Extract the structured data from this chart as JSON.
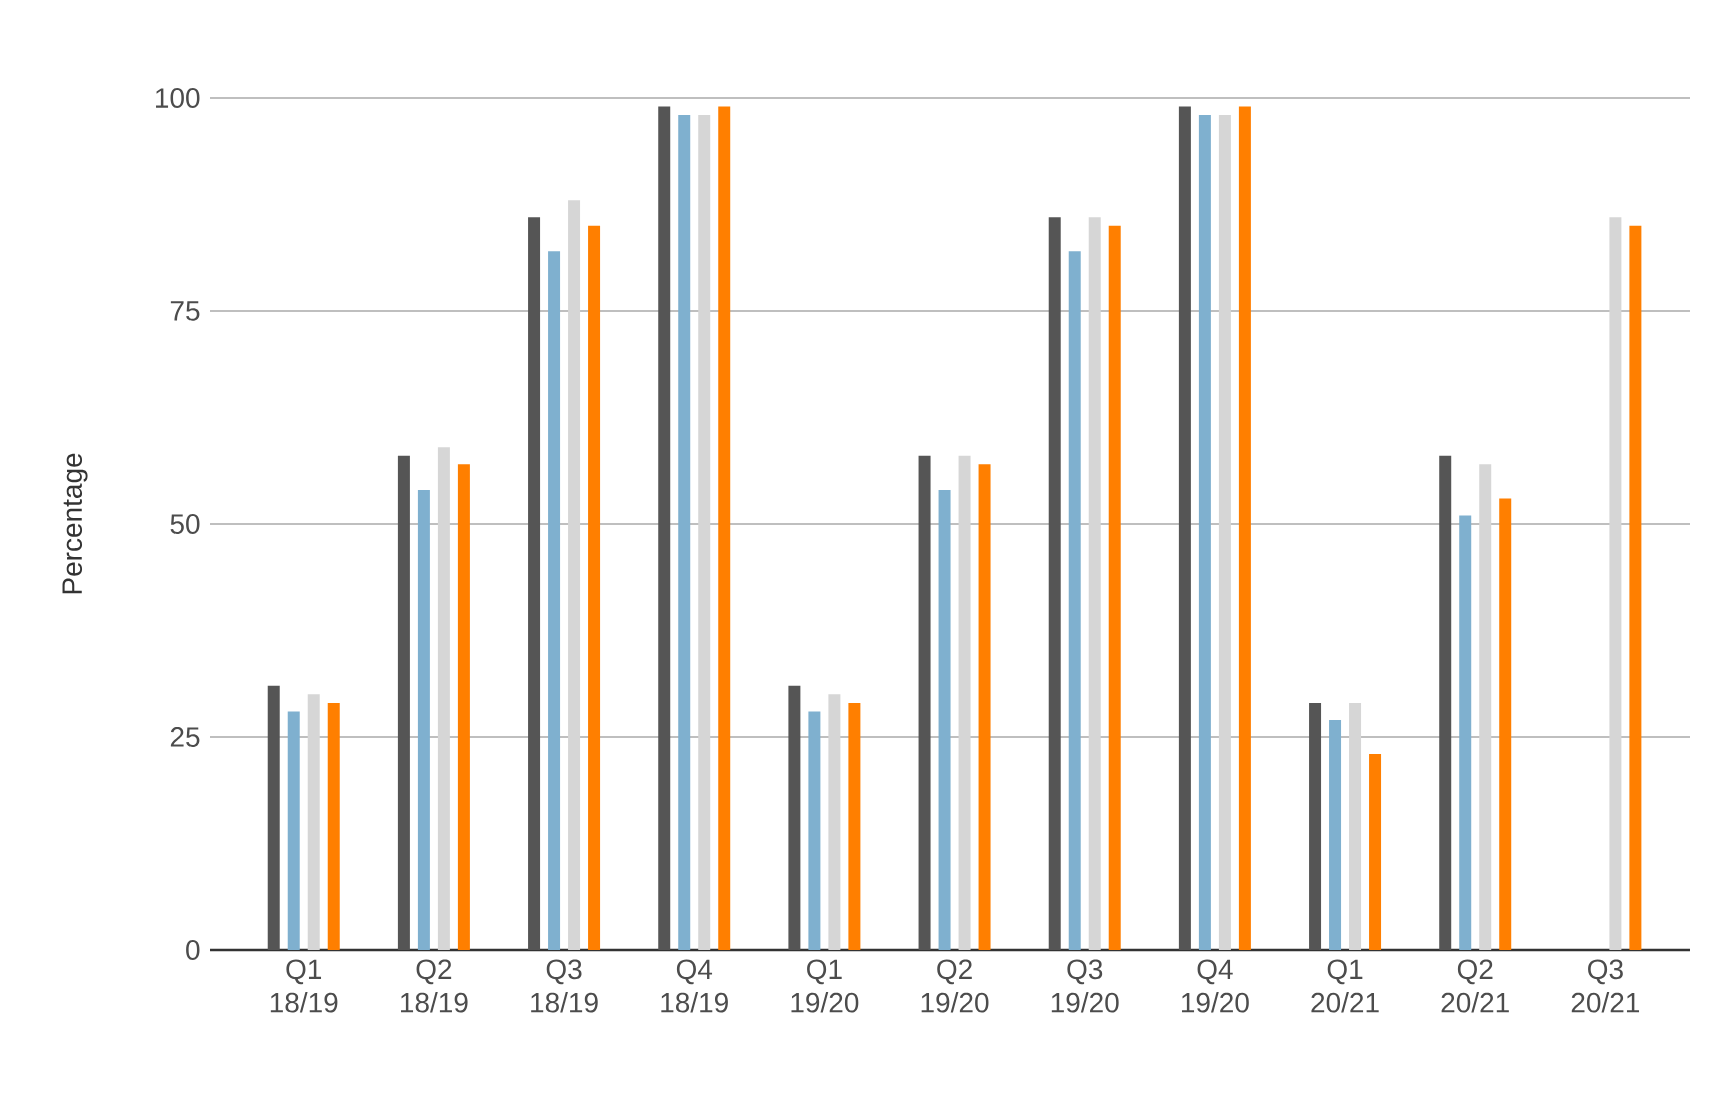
{
  "chart_data": {
    "type": "bar",
    "ylabel": "Percentage",
    "categories": [
      "Q1 18/19",
      "Q2 18/19",
      "Q3 18/19",
      "Q4 18/19",
      "Q1 19/20",
      "Q2 19/20",
      "Q3 19/20",
      "Q4 19/20",
      "Q1 20/21",
      "Q2 20/21",
      "Q3 20/21"
    ],
    "series": [
      {
        "color": "#555555",
        "values": [
          31,
          58,
          86,
          99,
          31,
          58,
          86,
          99,
          29,
          58,
          null
        ]
      },
      {
        "color": "#7fb0cf",
        "values": [
          28,
          54,
          82,
          98,
          28,
          54,
          82,
          98,
          27,
          51,
          null
        ]
      },
      {
        "color": "#d6d6d6",
        "values": [
          30,
          59,
          88,
          98,
          30,
          58,
          86,
          98,
          29,
          57,
          86
        ]
      },
      {
        "color": "#ff7f00",
        "values": [
          29,
          57,
          85,
          99,
          29,
          57,
          85,
          99,
          23,
          53,
          85
        ]
      }
    ],
    "ylim": [
      0,
      100
    ],
    "yticks": [
      0,
      25,
      50,
      75,
      100
    ],
    "grid": "y"
  }
}
